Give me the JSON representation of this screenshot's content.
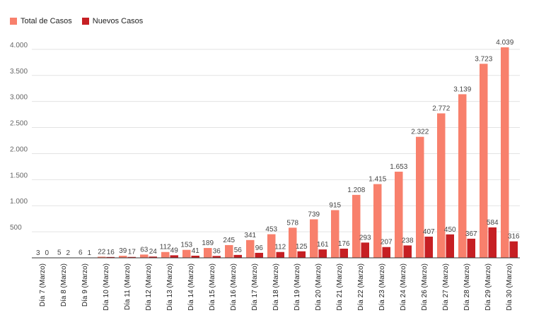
{
  "chart_data": {
    "type": "bar",
    "categories": [
      "Día 7 (Marzo)",
      "Día 8 (Marzo)",
      "Día 9 (Marzo)",
      "Día 10 (Marzo)",
      "Día 11 (Marzo)",
      "Día 12 (Marzo)",
      "Día 13 (Marzo)",
      "Día 14 (Marzo)",
      "Día 15 (Marzo)",
      "Día 16 (Marzo)",
      "Día 17 (Marzo)",
      "Día 18 (Marzo)",
      "Día 19 (Marzo)",
      "Día 20 (Marzo)",
      "Día 21 (Marzo)",
      "Día 22 (Marzo)",
      "Día 23 (Marzo)",
      "Día 24 (Marzo)",
      "Día 26 (Marzo)",
      "Día 27 (Marzo)",
      "Día 28 (Marzo)",
      "Día 29 (Marzo)",
      "Día 30 (Marzo)"
    ],
    "series": [
      {
        "name": "Total de Casos",
        "color": "#F8806C",
        "values": [
          3,
          5,
          6,
          22,
          39,
          63,
          112,
          153,
          189,
          245,
          341,
          453,
          578,
          739,
          915,
          1208,
          1415,
          1653,
          2322,
          2772,
          3139,
          3723,
          4039
        ],
        "labels": [
          "3",
          "5",
          "6",
          "22",
          "39",
          "63",
          "112",
          "153",
          "189",
          "245",
          "341",
          "453",
          "578",
          "739",
          "915",
          "1.208",
          "1.415",
          "1.653",
          "2.322",
          "2.772",
          "3.139",
          "3.723",
          "4.039"
        ]
      },
      {
        "name": "Nuevos Casos",
        "color": "#C61F23",
        "values": [
          0,
          2,
          1,
          16,
          17,
          24,
          49,
          41,
          36,
          56,
          96,
          112,
          125,
          161,
          176,
          293,
          207,
          238,
          407,
          450,
          367,
          584,
          316
        ],
        "labels": [
          "0",
          "2",
          "1",
          "16",
          "17",
          "24",
          "49",
          "41",
          "36",
          "56",
          "96",
          "112",
          "125",
          "161",
          "176",
          "293",
          "207",
          "238",
          "407",
          "450",
          "367",
          "584",
          "316"
        ]
      }
    ],
    "yticks": [
      500,
      1000,
      1500,
      2000,
      2500,
      3000,
      3500,
      4000
    ],
    "ytick_labels": [
      "500",
      "1.000",
      "1.500",
      "2.000",
      "2.500",
      "3.000",
      "3.500",
      "4.000"
    ],
    "ylim": [
      0,
      4039
    ],
    "grid": true,
    "legend_position": "top-left"
  }
}
